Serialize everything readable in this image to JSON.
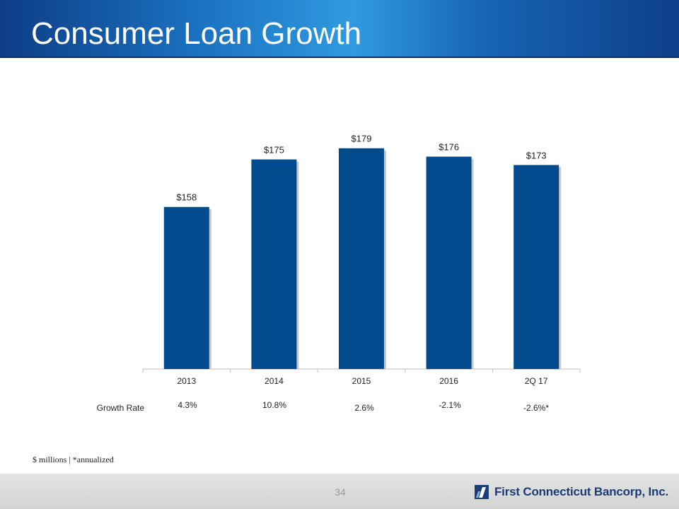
{
  "slide": {
    "title": "Consumer Loan Growth",
    "footnote": "$ millions | *annualized",
    "page_number": "34",
    "company": "First Connecticut Bancorp, Inc."
  },
  "growth": {
    "label": "Growth Rate",
    "values": [
      "4.3%",
      "10.8%",
      "2.6%",
      "-2.1%",
      "-2.6%*"
    ]
  },
  "colors": {
    "bar": "#004a8d",
    "header_dark": "#0d3d86",
    "header_light": "#2f9ae0",
    "logo": "#1c3c74"
  },
  "chart_data": {
    "type": "bar",
    "categories": [
      "2013",
      "2014",
      "2015",
      "2016",
      "2Q 17"
    ],
    "values": [
      158,
      175,
      179,
      176,
      173
    ],
    "data_labels": [
      "$158",
      "$175",
      "$179",
      "$176",
      "$173"
    ],
    "title": "",
    "xlabel": "",
    "ylabel": "",
    "ylim": [
      100,
      185
    ],
    "grid": false,
    "legend": "none"
  }
}
